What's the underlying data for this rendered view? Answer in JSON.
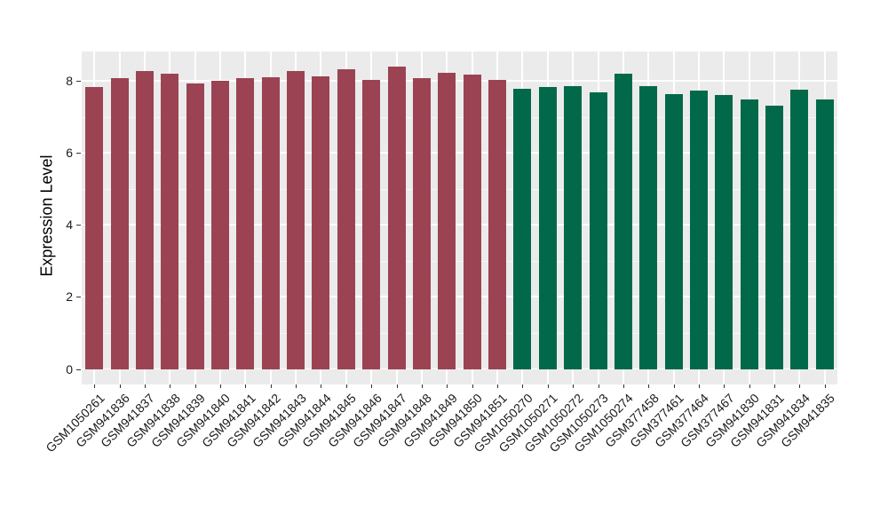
{
  "page": {
    "background": "#FFFFFF"
  },
  "y_axis": {
    "title": "Expression Level",
    "tick_labels": [
      "0",
      "2",
      "4",
      "6",
      "8"
    ]
  },
  "chart_data": {
    "type": "bar",
    "title": "",
    "xlabel": "",
    "ylabel": "Expression Level",
    "ylim": [
      -0.43,
      8.82
    ],
    "y_ticks": [
      0,
      2,
      4,
      6,
      8
    ],
    "y_minor_ticks": [
      1,
      3,
      5,
      7
    ],
    "grid": "white major and minor horizontal gridlines plus white vertical gridlines at each bar center, on gray panel",
    "legend_position": "none",
    "x_label_rotation_deg": 45,
    "categories": [
      "GSM1050261",
      "GSM941836",
      "GSM941837",
      "GSM941838",
      "GSM941839",
      "GSM941840",
      "GSM941841",
      "GSM941842",
      "GSM941843",
      "GSM941844",
      "GSM941845",
      "GSM941846",
      "GSM941847",
      "GSM941848",
      "GSM941849",
      "GSM941850",
      "GSM941851",
      "GSM1050270",
      "GSM1050271",
      "GSM1050272",
      "GSM1050273",
      "GSM1050274",
      "GSM377458",
      "GSM377461",
      "GSM377464",
      "GSM377467",
      "GSM941830",
      "GSM941831",
      "GSM941834",
      "GSM941835"
    ],
    "values": [
      7.84,
      8.08,
      8.27,
      8.21,
      7.92,
      8.0,
      8.07,
      8.11,
      8.27,
      8.14,
      8.33,
      8.02,
      8.4,
      8.08,
      8.22,
      8.17,
      8.02,
      7.78,
      7.84,
      7.87,
      7.69,
      8.2,
      7.87,
      7.63,
      7.74,
      7.6,
      7.49,
      7.31,
      7.77,
      7.49
    ],
    "groups": [
      "group1",
      "group1",
      "group1",
      "group1",
      "group1",
      "group1",
      "group1",
      "group1",
      "group1",
      "group1",
      "group1",
      "group1",
      "group1",
      "group1",
      "group1",
      "group1",
      "group1",
      "group2",
      "group2",
      "group2",
      "group2",
      "group2",
      "group2",
      "group2",
      "group2",
      "group2",
      "group2",
      "group2",
      "group2",
      "group2"
    ],
    "colors": {
      "group1": "#9B4352",
      "group2": "#016949",
      "panel_bg": "#EBEBEB",
      "grid": "#FFFFFF",
      "tick_mark": "#333333",
      "tick_label": "#1A1A1A"
    }
  }
}
